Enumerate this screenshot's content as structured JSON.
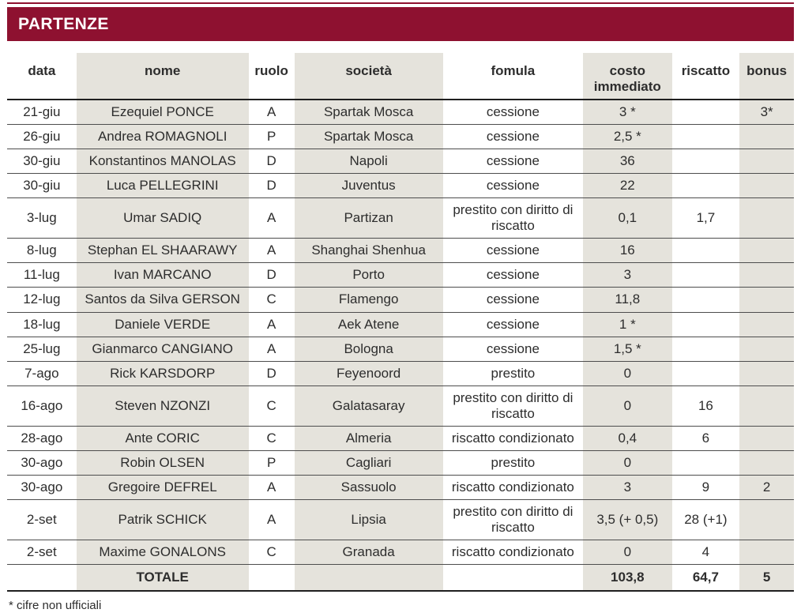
{
  "title": "PARTENZE",
  "footnote": "* cifre non ufficiali",
  "colors": {
    "header_maroon": "#8e1130",
    "shaded_cell": "#e5e3dc",
    "row_line": "#4d4d4d",
    "heavy_line": "#1f1f1f",
    "title_text": "#ffffff"
  },
  "chart_data": {
    "type": "table",
    "title": "PARTENZE",
    "columns": [
      "data",
      "nome",
      "ruolo",
      "società",
      "fomula",
      "costo immediato",
      "riscatto",
      "bonus"
    ],
    "rows": [
      [
        "21-giu",
        "Ezequiel PONCE",
        "A",
        "Spartak Mosca",
        "cessione",
        "3 *",
        "",
        "3*"
      ],
      [
        "26-giu",
        "Andrea ROMAGNOLI",
        "P",
        "Spartak Mosca",
        "cessione",
        "2,5 *",
        "",
        ""
      ],
      [
        "30-giu",
        "Konstantinos MANOLAS",
        "D",
        "Napoli",
        "cessione",
        "36",
        "",
        ""
      ],
      [
        "30-giu",
        "Luca PELLEGRINI",
        "D",
        "Juventus",
        "cessione",
        "22",
        "",
        ""
      ],
      [
        "3-lug",
        "Umar SADIQ",
        "A",
        "Partizan",
        "prestito con diritto di riscatto",
        "0,1",
        "1,7",
        ""
      ],
      [
        "8-lug",
        "Stephan EL SHAARAWY",
        "A",
        "Shanghai Shenhua",
        "cessione",
        "16",
        "",
        ""
      ],
      [
        "11-lug",
        "Ivan MARCANO",
        "D",
        "Porto",
        "cessione",
        "3",
        "",
        ""
      ],
      [
        "12-lug",
        "Santos da Silva GERSON",
        "C",
        "Flamengo",
        "cessione",
        "11,8",
        "",
        ""
      ],
      [
        "18-lug",
        "Daniele VERDE",
        "A",
        "Aek Atene",
        "cessione",
        "1 *",
        "",
        ""
      ],
      [
        "25-lug",
        "Gianmarco CANGIANO",
        "A",
        "Bologna",
        "cessione",
        "1,5 *",
        "",
        ""
      ],
      [
        "7-ago",
        "Rick KARSDORP",
        "D",
        "Feyenoord",
        "prestito",
        "0",
        "",
        ""
      ],
      [
        "16-ago",
        "Steven NZONZI",
        "C",
        "Galatasaray",
        "prestito con diritto di riscatto",
        "0",
        "16",
        ""
      ],
      [
        "28-ago",
        "Ante CORIC",
        "C",
        "Almeria",
        "riscatto condizionato",
        "0,4",
        "6",
        ""
      ],
      [
        "30-ago",
        "Robin OLSEN",
        "P",
        "Cagliari",
        "prestito",
        "0",
        "",
        ""
      ],
      [
        "30-ago",
        "Gregoire DEFREL",
        "A",
        "Sassuolo",
        "riscatto condizionato",
        "3",
        "9",
        "2"
      ],
      [
        "2-set",
        "Patrik SCHICK",
        "A",
        "Lipsia",
        "prestito con diritto di riscatto",
        "3,5 (+ 0,5)",
        "28 (+1)",
        ""
      ],
      [
        "2-set",
        "Maxime GONALONS",
        "C",
        "Granada",
        "riscatto condizionato",
        "0",
        "4",
        ""
      ]
    ],
    "total_row": [
      "",
      "TOTALE",
      "",
      "",
      "",
      "103,8",
      "64,7",
      "5"
    ],
    "totals": {
      "costo_immediato": 103.8,
      "riscatto": 64.7,
      "bonus": 5
    },
    "footnote": "* cifre non ufficiali"
  }
}
